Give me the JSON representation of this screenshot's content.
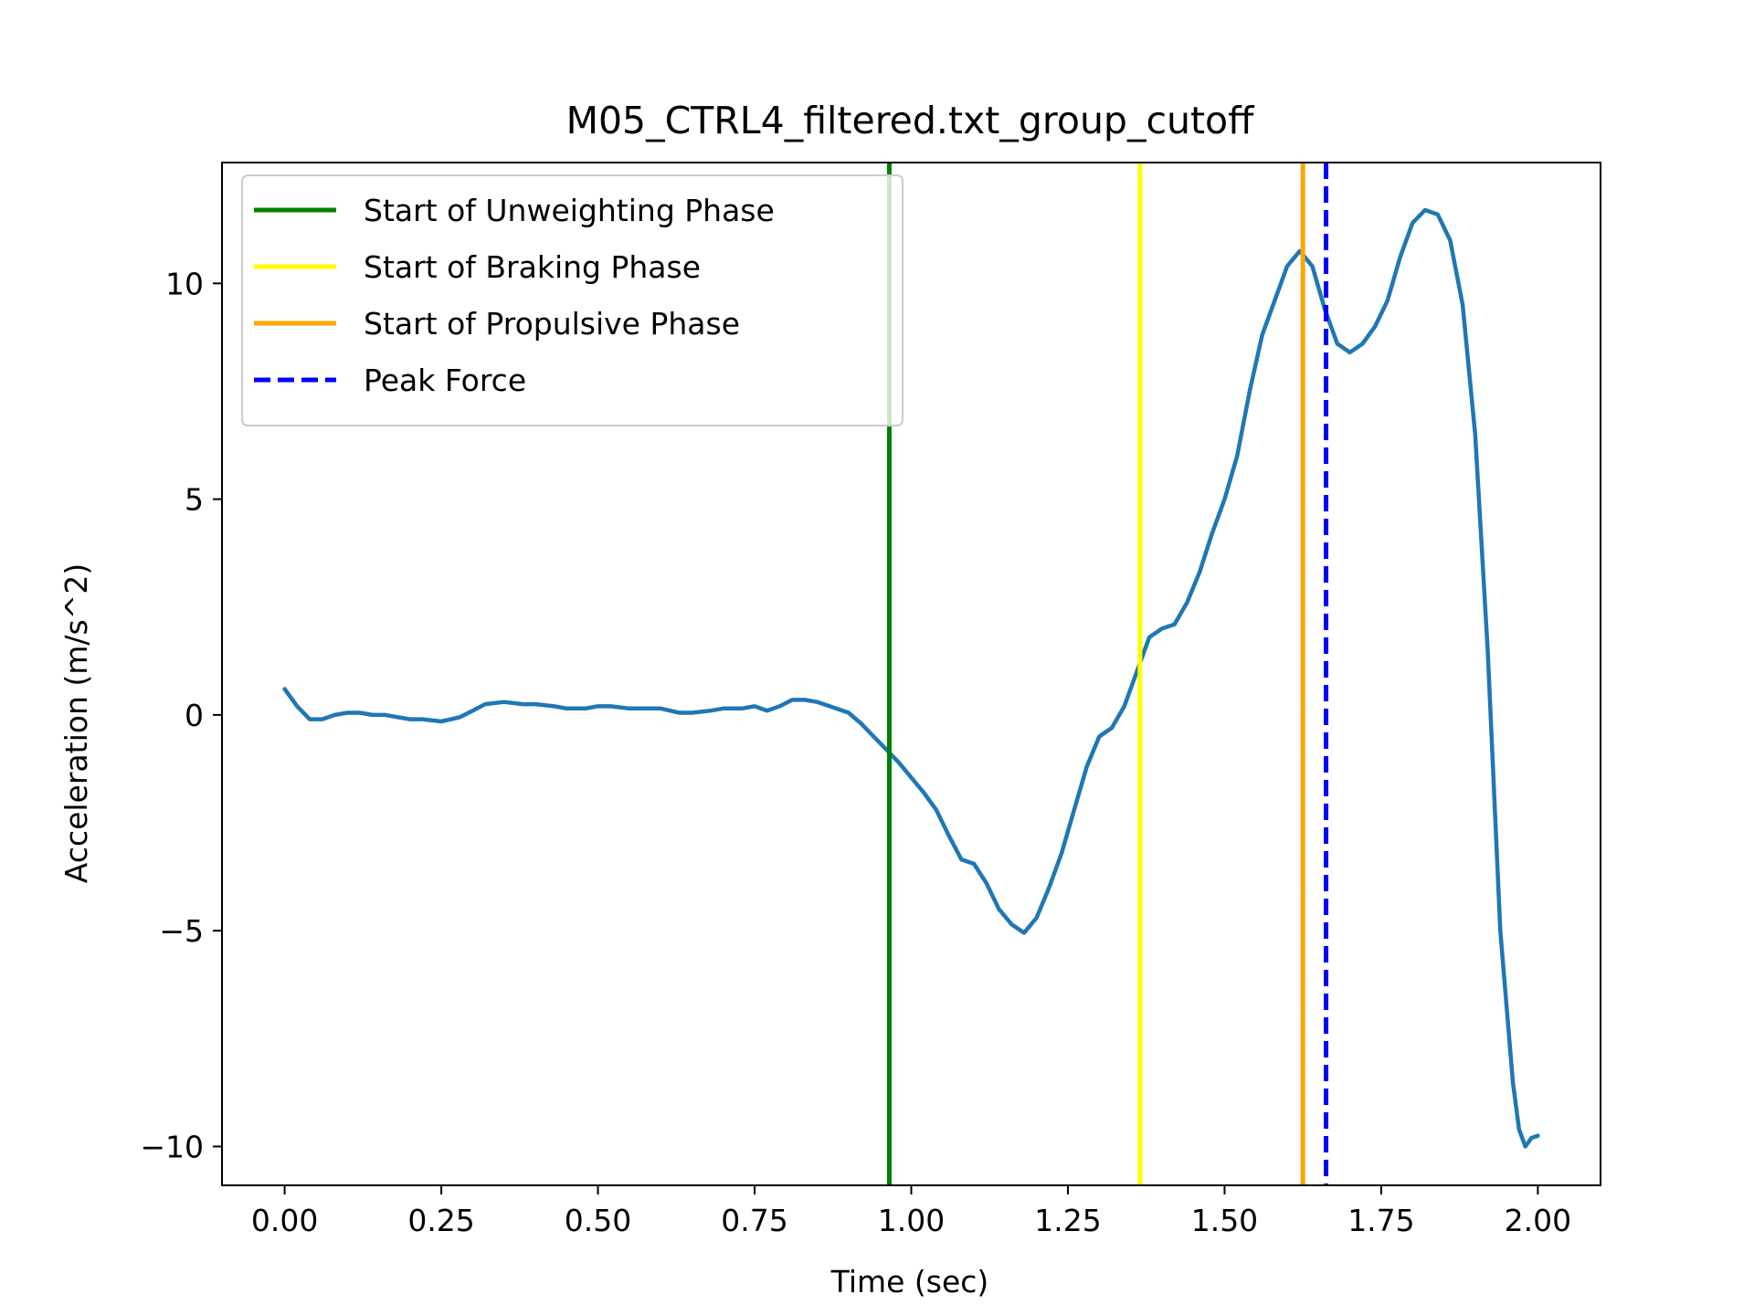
{
  "chart_data": {
    "type": "line",
    "title": "M05_CTRL4_filtered.txt_group_cutoff",
    "xlabel": "Time (sec)",
    "ylabel": "Acceleration (m/s^2)",
    "xlim": [
      -0.1,
      2.1
    ],
    "ylim": [
      -10.9,
      12.8
    ],
    "x_ticks": [
      0.0,
      0.25,
      0.5,
      0.75,
      1.0,
      1.25,
      1.5,
      1.75,
      2.0
    ],
    "x_tick_labels": [
      "0.00",
      "0.25",
      "0.50",
      "0.75",
      "1.00",
      "1.25",
      "1.50",
      "1.75",
      "2.00"
    ],
    "y_ticks": [
      -10,
      -5,
      0,
      5,
      10
    ],
    "y_tick_labels": [
      "−10",
      "−5",
      "0",
      "5",
      "10"
    ],
    "grid": false,
    "legend_position": "top-left",
    "series": [
      {
        "color": "#1f77b4",
        "x": [
          0.0,
          0.02,
          0.04,
          0.06,
          0.08,
          0.1,
          0.12,
          0.14,
          0.16,
          0.18,
          0.2,
          0.22,
          0.25,
          0.28,
          0.3,
          0.32,
          0.35,
          0.38,
          0.4,
          0.43,
          0.45,
          0.48,
          0.5,
          0.52,
          0.55,
          0.58,
          0.6,
          0.63,
          0.65,
          0.68,
          0.7,
          0.73,
          0.75,
          0.77,
          0.79,
          0.81,
          0.83,
          0.85,
          0.87,
          0.9,
          0.92,
          0.94,
          0.96,
          0.98,
          1.0,
          1.02,
          1.04,
          1.06,
          1.08,
          1.1,
          1.12,
          1.14,
          1.16,
          1.18,
          1.2,
          1.22,
          1.24,
          1.26,
          1.28,
          1.3,
          1.32,
          1.34,
          1.36,
          1.38,
          1.4,
          1.42,
          1.44,
          1.46,
          1.48,
          1.5,
          1.52,
          1.54,
          1.56,
          1.58,
          1.6,
          1.62,
          1.64,
          1.66,
          1.68,
          1.7,
          1.72,
          1.74,
          1.76,
          1.78,
          1.8,
          1.82,
          1.84,
          1.86,
          1.88,
          1.9,
          1.92,
          1.94,
          1.96,
          1.97,
          1.98,
          1.99,
          2.0
        ],
        "y": [
          0.6,
          0.2,
          -0.1,
          -0.1,
          0.0,
          0.05,
          0.05,
          0.0,
          0.0,
          -0.05,
          -0.1,
          -0.1,
          -0.15,
          -0.05,
          0.1,
          0.25,
          0.3,
          0.25,
          0.25,
          0.2,
          0.15,
          0.15,
          0.2,
          0.2,
          0.15,
          0.15,
          0.15,
          0.05,
          0.05,
          0.1,
          0.15,
          0.15,
          0.2,
          0.1,
          0.2,
          0.35,
          0.35,
          0.3,
          0.2,
          0.05,
          -0.2,
          -0.5,
          -0.8,
          -1.1,
          -1.45,
          -1.8,
          -2.2,
          -2.8,
          -3.35,
          -3.45,
          -3.9,
          -4.5,
          -4.85,
          -5.05,
          -4.7,
          -4.0,
          -3.2,
          -2.2,
          -1.2,
          -0.5,
          -0.3,
          0.2,
          1.0,
          1.8,
          2.0,
          2.1,
          2.6,
          3.3,
          4.2,
          5.0,
          6.0,
          7.5,
          8.8,
          9.6,
          10.4,
          10.75,
          10.4,
          9.4,
          8.6,
          8.4,
          8.6,
          9.0,
          9.6,
          10.6,
          11.4,
          11.7,
          11.6,
          11.0,
          9.5,
          6.5,
          1.5,
          -5.0,
          -8.5,
          -9.6,
          -10.0,
          -9.8,
          -9.75
        ]
      }
    ],
    "vlines": [
      {
        "name": "Start of Unweighting Phase",
        "x": 0.965,
        "color": "#008000",
        "dashed": false
      },
      {
        "name": "Start of Braking Phase",
        "x": 1.365,
        "color": "#ffff00",
        "dashed": false
      },
      {
        "name": "Start of Propulsive Phase",
        "x": 1.625,
        "color": "#ffa500",
        "dashed": false
      },
      {
        "name": "Peak Force",
        "x": 1.662,
        "color": "#0000ff",
        "dashed": true
      }
    ]
  }
}
